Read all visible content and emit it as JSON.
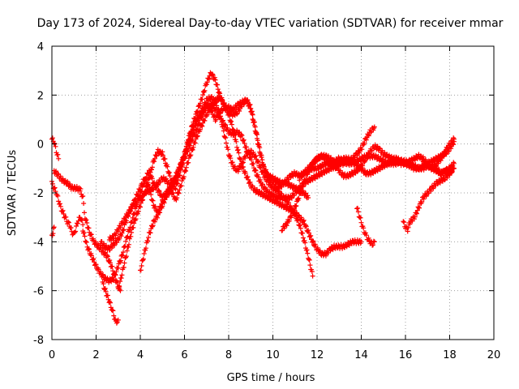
{
  "chart_data": {
    "type": "scatter",
    "title": "Day 173 of 2024, Sidereal Day-to-day VTEC variation (SDTVAR) for receiver mmar",
    "xlabel": "GPS time / hours",
    "ylabel": "SDTVAR / TECUs",
    "xlim": [
      0,
      20
    ],
    "ylim": [
      -8,
      4
    ],
    "x_ticks": [
      0,
      2,
      4,
      6,
      8,
      10,
      12,
      14,
      16,
      18,
      20
    ],
    "y_ticks": [
      -8,
      -6,
      -4,
      -2,
      0,
      2,
      4
    ],
    "x_tick_labels": [
      "0",
      "2",
      "4",
      "6",
      "8",
      "10",
      "12",
      "14",
      "16",
      "18",
      "20"
    ],
    "y_tick_labels": [
      "-8",
      "-6",
      "-4",
      "-2",
      "0",
      "2",
      "4"
    ],
    "grid": true,
    "marker": "+",
    "color": "#ff0000",
    "series": [
      {
        "name": "s1",
        "x": [
          0.0,
          0.1,
          0.2,
          0.3
        ],
        "y": [
          0.2,
          0.1,
          -0.3,
          -0.6
        ]
      },
      {
        "name": "s2",
        "x": [
          0.0,
          0.1,
          0.2,
          0.3,
          0.4,
          0.5,
          0.6,
          0.7,
          0.8,
          0.9,
          1.0,
          1.1,
          1.2,
          1.3,
          1.4
        ],
        "y": [
          -1.6,
          -1.8,
          -2.0,
          -2.3,
          -2.6,
          -2.8,
          -3.0,
          -3.2,
          -3.3,
          -3.6,
          -3.7,
          -3.4,
          -3.1,
          -3.0,
          -3.3
        ]
      },
      {
        "name": "s3",
        "x": [
          0.0,
          0.05,
          0.1
        ],
        "y": [
          -3.8,
          -3.6,
          -3.4
        ]
      },
      {
        "name": "s4",
        "x": [
          0.1,
          0.3,
          0.5,
          0.7,
          0.9,
          1.1,
          1.3,
          1.4,
          1.5,
          1.7,
          1.9,
          2.1,
          2.3,
          2.5,
          2.7,
          2.9,
          3.1
        ],
        "y": [
          -1.1,
          -1.3,
          -1.5,
          -1.6,
          -1.8,
          -1.8,
          -1.9,
          -2.2,
          -3.0,
          -3.6,
          -4.0,
          -4.2,
          -4.4,
          -4.6,
          -5.0,
          -5.6,
          -6.0
        ]
      },
      {
        "name": "s5",
        "x": [
          1.4,
          1.6,
          1.8,
          2.0,
          2.2,
          2.4,
          2.6,
          2.8,
          3.0,
          3.2,
          3.4,
          3.6,
          3.8,
          4.0,
          4.2,
          4.4,
          4.6,
          4.8,
          5.0,
          5.2,
          5.4,
          5.6,
          5.8,
          6.0,
          6.2,
          6.4,
          6.6,
          6.8,
          7.0,
          7.2,
          7.4,
          7.6,
          7.8,
          8.0,
          8.2,
          8.4,
          8.6,
          8.8,
          9.0,
          9.2,
          9.4,
          9.6,
          9.8,
          10.0,
          10.2,
          10.4,
          10.6,
          10.8,
          11.0,
          11.2,
          11.4,
          11.6,
          11.8,
          12.0,
          12.2,
          12.4,
          12.6,
          12.8,
          13.0,
          13.2,
          13.4,
          13.6,
          13.8,
          14.0,
          14.2,
          14.4,
          14.6,
          14.8,
          15.0,
          15.2,
          15.4,
          15.6,
          15.8,
          16.0,
          16.2,
          16.4,
          16.6,
          16.8,
          17.0,
          17.2,
          17.4,
          17.6,
          17.8,
          18.0,
          18.2
        ],
        "y": [
          -3.5,
          -4.2,
          -4.6,
          -5.0,
          -5.3,
          -5.5,
          -5.6,
          -5.5,
          -5.0,
          -4.5,
          -3.8,
          -3.2,
          -2.6,
          -2.0,
          -1.5,
          -1.1,
          -1.6,
          -1.9,
          -2.2,
          -2.0,
          -1.7,
          -1.4,
          -0.9,
          -0.4,
          0.3,
          0.9,
          1.4,
          1.9,
          2.5,
          2.9,
          2.6,
          2.0,
          1.6,
          1.3,
          1.2,
          1.3,
          1.6,
          1.8,
          1.5,
          0.7,
          -0.2,
          -1.0,
          -1.4,
          -1.6,
          -1.8,
          -1.7,
          -1.5,
          -1.3,
          -1.2,
          -1.3,
          -1.2,
          -1.1,
          -1.0,
          -1.0,
          -0.9,
          -0.8,
          -0.8,
          -0.7,
          -0.6,
          -0.7,
          -0.8,
          -0.8,
          -0.7,
          -0.6,
          -0.5,
          -0.5,
          -0.5,
          -0.6,
          -0.7,
          -0.8,
          -0.8,
          -0.8,
          -0.7,
          -0.7,
          -0.8,
          -0.9,
          -1.0,
          -1.0,
          -0.9,
          -0.9,
          -1.0,
          -1.2,
          -1.1,
          -1.2,
          -1.0
        ]
      },
      {
        "name": "s6",
        "x": [
          2.2,
          2.4,
          2.6,
          2.8,
          3.0,
          3.2,
          3.4,
          3.6,
          3.8,
          4.0,
          4.2,
          4.4,
          4.6,
          4.8,
          5.0,
          5.2,
          5.4,
          5.6,
          5.8,
          6.0,
          6.2,
          6.4,
          6.6,
          6.8,
          7.0,
          7.2,
          7.4,
          7.6,
          7.8,
          8.0,
          8.2,
          8.4,
          8.6,
          8.8,
          9.0,
          9.2,
          9.4,
          9.6,
          9.8,
          10.0,
          10.2,
          10.4,
          10.6,
          10.8,
          11.0,
          11.2,
          11.4,
          11.6,
          11.8,
          12.0,
          12.2,
          12.4,
          12.6,
          12.8,
          13.0,
          13.2,
          13.4,
          13.6,
          13.8,
          14.0,
          14.2,
          14.4,
          14.6
        ],
        "y": [
          -4.0,
          -4.2,
          -4.3,
          -4.1,
          -3.9,
          -3.6,
          -3.0,
          -2.6,
          -2.2,
          -1.8,
          -1.4,
          -1.8,
          -2.5,
          -2.8,
          -2.4,
          -2.0,
          -1.7,
          -1.3,
          -0.9,
          -0.5,
          0.1,
          0.6,
          1.0,
          1.3,
          1.5,
          1.6,
          1.4,
          1.1,
          0.8,
          0.5,
          0.4,
          0.5,
          0.3,
          -0.2,
          -0.6,
          -1.1,
          -1.5,
          -1.8,
          -2.0,
          -2.1,
          -2.2,
          -2.2,
          -2.2,
          -2.2,
          -2.0,
          -1.8,
          -1.6,
          -1.5,
          -1.4,
          -1.3,
          -1.2,
          -1.1,
          -1.0,
          -0.9,
          -0.8,
          -0.8,
          -0.7,
          -0.6,
          -0.4,
          -0.2,
          0.2,
          0.5,
          0.7
        ]
      },
      {
        "name": "s7",
        "x": [
          2.6,
          2.8,
          3.0,
          3.2,
          3.4,
          3.6,
          3.8,
          4.0,
          4.2,
          4.4,
          4.6,
          4.8,
          5.0,
          5.2,
          5.4,
          5.6,
          5.8,
          6.0,
          6.2,
          6.4,
          6.6,
          6.8,
          7.0,
          7.2,
          7.4,
          7.6,
          7.8,
          8.0,
          8.2,
          8.4,
          8.6,
          8.8,
          9.0,
          9.2,
          9.4,
          9.6,
          9.8,
          10.0,
          10.2,
          10.4,
          10.6,
          10.8,
          11.0,
          11.2,
          11.4,
          11.6,
          11.8,
          12.0,
          12.2,
          12.4,
          12.6,
          12.8,
          13.0,
          13.2,
          13.4,
          13.6,
          13.8,
          14.0
        ],
        "y": [
          -3.9,
          -3.8,
          -3.5,
          -3.2,
          -2.9,
          -2.6,
          -2.4,
          -2.2,
          -2.0,
          -1.9,
          -1.8,
          -1.6,
          -1.4,
          -1.5,
          -1.9,
          -2.3,
          -1.8,
          -1.2,
          -0.6,
          -0.1,
          0.4,
          0.8,
          1.2,
          1.5,
          1.8,
          1.9,
          1.6,
          1.2,
          0.6,
          -0.2,
          -0.9,
          -1.3,
          -1.7,
          -1.9,
          -2.0,
          -2.1,
          -2.2,
          -2.3,
          -2.4,
          -2.5,
          -2.6,
          -2.7,
          -2.8,
          -3.0,
          -3.2,
          -3.6,
          -4.0,
          -4.3,
          -4.5,
          -4.5,
          -4.3,
          -4.2,
          -4.2,
          -4.2,
          -4.1,
          -4.0,
          -4.0,
          -4.0
        ]
      },
      {
        "name": "s8",
        "x": [
          2.3,
          2.5,
          2.7,
          2.8,
          2.9,
          3.0
        ],
        "y": [
          -5.7,
          -6.2,
          -6.7,
          -7.0,
          -7.3,
          -7.2
        ]
      },
      {
        "name": "s9",
        "x": [
          3.0,
          3.2,
          3.4,
          3.6,
          3.8,
          4.0,
          4.2,
          4.4,
          4.6,
          4.8,
          5.0,
          5.2,
          5.4,
          5.6,
          5.8,
          6.0,
          6.2,
          6.4,
          6.6,
          6.8,
          7.0,
          7.2,
          7.4,
          7.6,
          7.8,
          8.0,
          8.2,
          8.4,
          8.6,
          8.8,
          9.0,
          9.2,
          9.4,
          9.6,
          9.8,
          10.0,
          10.2,
          10.4,
          10.6,
          10.8,
          11.0,
          11.2,
          11.4,
          11.6,
          11.8
        ],
        "y": [
          -6.0,
          -5.2,
          -4.4,
          -3.6,
          -3.0,
          -2.5,
          -2.0,
          -1.4,
          -0.7,
          -0.3,
          -0.4,
          -0.9,
          -1.5,
          -1.8,
          -1.2,
          -0.5,
          0.2,
          0.7,
          1.1,
          1.4,
          1.8,
          1.9,
          1.7,
          1.2,
          0.4,
          -0.4,
          -0.9,
          -1.1,
          -0.8,
          -0.4,
          -0.3,
          -0.5,
          -0.9,
          -1.3,
          -1.6,
          -1.8,
          -1.9,
          -2.1,
          -2.3,
          -2.6,
          -2.9,
          -3.3,
          -3.9,
          -4.6,
          -5.4
        ]
      },
      {
        "name": "s10",
        "x": [
          4.0,
          4.2,
          4.4,
          4.6,
          4.8,
          5.0,
          5.2,
          5.4,
          5.6,
          5.8,
          6.0,
          6.2,
          6.4,
          6.6,
          6.8,
          7.0,
          7.2,
          7.4,
          7.6,
          7.8,
          8.0,
          8.2,
          8.4,
          8.6,
          8.8,
          9.0,
          9.2,
          9.4,
          9.6,
          9.8,
          10.0,
          10.2,
          10.4,
          10.6,
          10.8,
          11.0,
          11.2,
          11.4,
          11.6
        ],
        "y": [
          -5.2,
          -4.4,
          -3.7,
          -3.2,
          -2.9,
          -2.5,
          -2.1,
          -1.9,
          -1.5,
          -1.0,
          -0.6,
          -0.1,
          0.3,
          0.7,
          1.2,
          1.6,
          1.4,
          1.0,
          1.3,
          1.5,
          1.5,
          1.4,
          1.6,
          1.7,
          1.8,
          1.4,
          0.6,
          -0.3,
          -1.0,
          -1.3,
          -1.4,
          -1.5,
          -1.6,
          -1.6,
          -1.7,
          -1.8,
          -1.9,
          -2.0,
          -2.2
        ]
      },
      {
        "name": "s11",
        "x": [
          10.4,
          10.6,
          10.8,
          11.0,
          11.2,
          11.4,
          11.6,
          11.8,
          12.0,
          12.2,
          12.4,
          12.6,
          12.8,
          13.0,
          13.2,
          13.4,
          13.6,
          13.8,
          14.0,
          14.2,
          14.4,
          14.6,
          14.8,
          15.0,
          15.2,
          15.4,
          15.6,
          15.8,
          16.0,
          16.2,
          16.4,
          16.6,
          16.8,
          17.0,
          17.2,
          17.4,
          17.6,
          17.8,
          18.0,
          18.2
        ],
        "y": [
          -3.5,
          -3.3,
          -3.0,
          -2.6,
          -2.1,
          -1.6,
          -1.1,
          -0.8,
          -0.6,
          -0.5,
          -0.6,
          -0.8,
          -1.0,
          -0.8,
          -0.6,
          -0.6,
          -0.7,
          -0.9,
          -1.0,
          -1.2,
          -1.2,
          -1.1,
          -1.0,
          -0.9,
          -0.8,
          -0.7,
          -0.7,
          -0.8,
          -0.8,
          -0.7,
          -0.6,
          -0.5,
          -0.6,
          -0.8,
          -1.0,
          -1.1,
          -1.2,
          -1.1,
          -1.0,
          -0.8
        ]
      },
      {
        "name": "s12",
        "x": [
          11.2,
          11.4,
          11.6,
          11.8,
          12.0,
          12.2,
          12.4,
          12.6,
          12.8,
          13.0,
          13.2,
          13.4,
          13.6,
          13.8,
          14.0,
          14.2,
          14.4,
          14.6,
          14.8,
          15.0,
          15.2,
          15.4,
          15.6,
          15.8,
          16.0,
          16.2,
          16.4,
          16.6,
          16.8,
          17.0,
          17.2,
          17.4,
          17.6,
          17.8,
          18.0,
          18.2
        ],
        "y": [
          -1.4,
          -1.2,
          -1.0,
          -0.8,
          -0.6,
          -0.5,
          -0.5,
          -0.6,
          -0.8,
          -1.1,
          -1.3,
          -1.3,
          -1.2,
          -1.1,
          -0.9,
          -0.6,
          -0.3,
          -0.1,
          -0.2,
          -0.4,
          -0.5,
          -0.6,
          -0.6,
          -0.7,
          -0.8,
          -0.9,
          -1.0,
          -1.0,
          -0.9,
          -0.8,
          -0.7,
          -0.6,
          -0.5,
          -0.4,
          -0.2,
          0.1
        ]
      },
      {
        "name": "s13",
        "x": [
          13.8,
          13.9,
          14.0,
          14.1,
          14.2,
          14.3,
          14.4,
          14.5,
          14.6
        ],
        "y": [
          -2.6,
          -2.9,
          -3.2,
          -3.5,
          -3.7,
          -3.9,
          -4.0,
          -4.1,
          -4.0
        ]
      },
      {
        "name": "s14",
        "x": [
          15.9,
          16.0,
          16.1,
          16.2,
          16.4,
          16.6,
          16.8,
          17.0,
          17.2,
          17.4,
          17.6,
          17.8,
          18.0,
          18.2
        ],
        "y": [
          -3.2,
          -3.4,
          -3.5,
          -3.2,
          -3.0,
          -2.6,
          -2.2,
          -2.0,
          -1.8,
          -1.6,
          -1.5,
          -1.4,
          -1.2,
          -1.0
        ]
      },
      {
        "name": "s15",
        "x": [
          16.8,
          17.0,
          17.2,
          17.4,
          17.6,
          17.8,
          18.0,
          18.2
        ],
        "y": [
          -0.8,
          -0.9,
          -1.0,
          -0.8,
          -0.6,
          -0.3,
          0.0,
          0.2
        ]
      }
    ]
  }
}
